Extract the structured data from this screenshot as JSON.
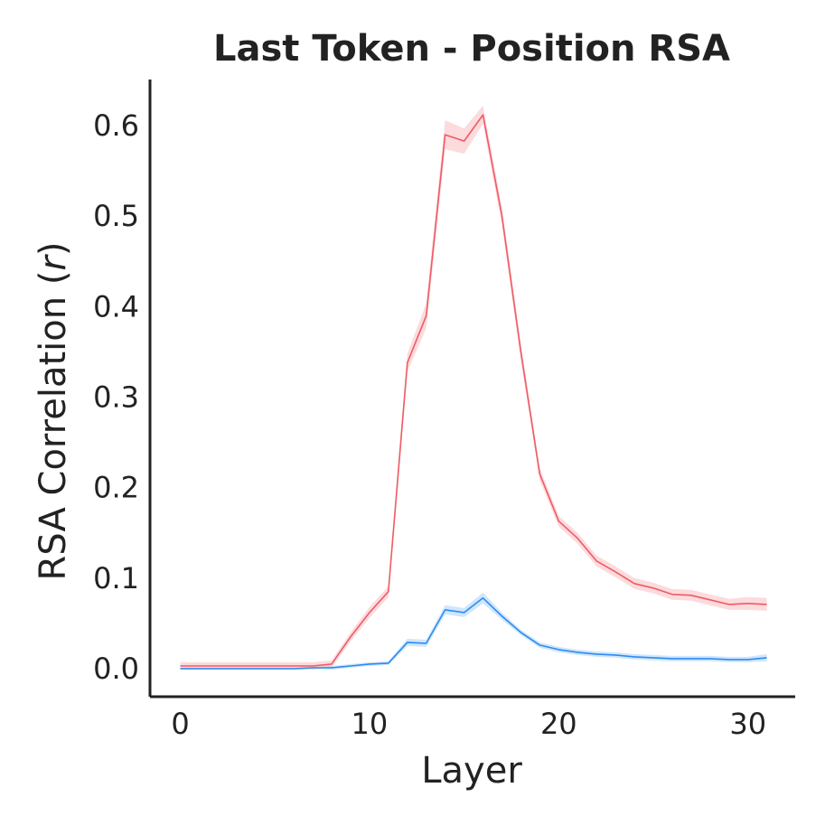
{
  "chart_data": {
    "type": "line",
    "title": "Last Token - Position RSA",
    "xlabel": "Layer",
    "ylabel_main": "RSA Correlation (",
    "ylabel_italic": "r",
    "ylabel_close": ")",
    "xlim": [
      -1.6,
      32.5
    ],
    "ylim": [
      -0.031,
      0.651
    ],
    "xticks": [
      0,
      10,
      20,
      30
    ],
    "xtick_labels": [
      "0",
      "10",
      "20",
      "30"
    ],
    "yticks": [
      0.0,
      0.1,
      0.2,
      0.3,
      0.4,
      0.5,
      0.6
    ],
    "ytick_labels": [
      "0.0",
      "0.1",
      "0.2",
      "0.3",
      "0.4",
      "0.5",
      "0.6"
    ],
    "grid": false,
    "legend": "none",
    "x": [
      0,
      1,
      2,
      3,
      4,
      5,
      6,
      7,
      8,
      9,
      10,
      11,
      12,
      13,
      14,
      15,
      16,
      17,
      18,
      19,
      20,
      21,
      22,
      23,
      24,
      25,
      26,
      27,
      28,
      29,
      30,
      31
    ],
    "series": [
      {
        "color": "#f05a64",
        "values": [
          0.003,
          0.003,
          0.003,
          0.003,
          0.003,
          0.003,
          0.003,
          0.003,
          0.005,
          0.035,
          0.062,
          0.085,
          0.338,
          0.39,
          0.59,
          0.583,
          0.612,
          0.5,
          0.35,
          0.215,
          0.163,
          0.144,
          0.119,
          0.107,
          0.094,
          0.089,
          0.082,
          0.081,
          0.076,
          0.071,
          0.072,
          0.071
        ],
        "band": [
          0.004,
          0.004,
          0.004,
          0.004,
          0.004,
          0.004,
          0.004,
          0.004,
          0.004,
          0.005,
          0.006,
          0.006,
          0.01,
          0.014,
          0.016,
          0.014,
          0.01,
          0.01,
          0.009,
          0.007,
          0.006,
          0.006,
          0.006,
          0.006,
          0.006,
          0.006,
          0.006,
          0.006,
          0.006,
          0.006,
          0.007,
          0.007
        ]
      },
      {
        "color": "#2b8cf0",
        "values": [
          0.0,
          0.0,
          0.0,
          0.0,
          0.0,
          0.0,
          0.0,
          0.001,
          0.001,
          0.003,
          0.005,
          0.006,
          0.029,
          0.028,
          0.065,
          0.062,
          0.078,
          0.058,
          0.04,
          0.026,
          0.021,
          0.018,
          0.016,
          0.015,
          0.013,
          0.012,
          0.011,
          0.011,
          0.011,
          0.01,
          0.01,
          0.012
        ],
        "band": [
          0.001,
          0.001,
          0.001,
          0.001,
          0.001,
          0.001,
          0.001,
          0.001,
          0.002,
          0.002,
          0.002,
          0.002,
          0.004,
          0.004,
          0.005,
          0.005,
          0.006,
          0.004,
          0.003,
          0.003,
          0.003,
          0.003,
          0.003,
          0.003,
          0.003,
          0.003,
          0.003,
          0.003,
          0.003,
          0.003,
          0.003,
          0.004
        ]
      }
    ]
  }
}
